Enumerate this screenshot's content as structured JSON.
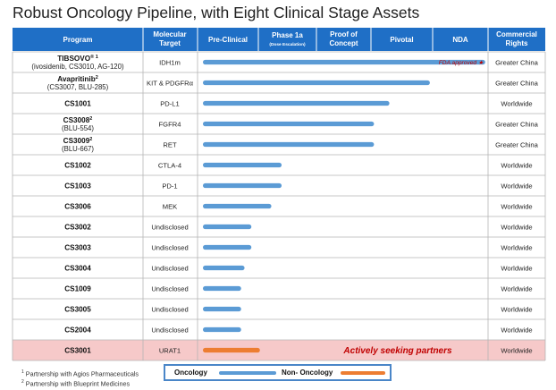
{
  "title": "Robust Oncology Pipeline, with Eight Clinical Stage Assets",
  "colors": {
    "header_bg": "#1f6fc6",
    "header_text": "#ffffff",
    "oncology_bar": "#5b9bd5",
    "non_oncology_bar": "#ed7d31",
    "highlight_row": "#f6c9c9",
    "grid": "#b5b5b5",
    "fda_text": "#c00000",
    "partners_text": "#c00000"
  },
  "chart_data": {
    "type": "table",
    "columns": {
      "program": "Program",
      "target": [
        "Molecular",
        "Target"
      ],
      "stages": [
        {
          "label": "Pre-Clinical"
        },
        {
          "label": "Phase 1a",
          "sub": "(Dose Escalation)"
        },
        {
          "label": "Proof of",
          "label2": "Concept"
        },
        {
          "label": "Pivotal"
        },
        {
          "label": "NDA"
        }
      ],
      "rights": [
        "Commercial",
        "Rights"
      ]
    },
    "stage_range": [
      0,
      5
    ],
    "rows": [
      {
        "name": "TIBSOVO",
        "sup": "® 1",
        "sub": "(ivosidenib, CS3010, AG-120)",
        "target": "IDH1m",
        "progress": 4.95,
        "category": "oncology",
        "rights": "Greater China",
        "note": "FDA approved ★"
      },
      {
        "name": "Avapritinib",
        "sup": "2",
        "sub": "(CS3007, BLU-285)",
        "target": "KIT & PDGFRα",
        "progress": 3.98,
        "category": "oncology",
        "rights": "Greater China"
      },
      {
        "name": "CS1001",
        "target": "PD-L1",
        "progress": 3.27,
        "category": "oncology",
        "rights": "Worldwide"
      },
      {
        "name": "CS3008",
        "sup": "2",
        "sub": "(BLU-554)",
        "target": "FGFR4",
        "progress": 3.0,
        "category": "oncology",
        "rights": "Greater China"
      },
      {
        "name": "CS3009",
        "sup": "2",
        "sub": "(BLU-667)",
        "target": "RET",
        "progress": 3.0,
        "category": "oncology",
        "rights": "Greater China"
      },
      {
        "name": "CS1002",
        "target": "CTLA-4",
        "progress": 1.38,
        "category": "oncology",
        "rights": "Worldwide"
      },
      {
        "name": "CS1003",
        "target": "PD-1",
        "progress": 1.38,
        "category": "oncology",
        "rights": "Worldwide"
      },
      {
        "name": "CS3006",
        "target": "MEK",
        "progress": 1.2,
        "category": "oncology",
        "rights": "Worldwide"
      },
      {
        "name": "CS3002",
        "target": "Undisclosed",
        "progress": 0.85,
        "category": "oncology",
        "rights": "Worldwide"
      },
      {
        "name": "CS3003",
        "target": "Undisclosed",
        "progress": 0.85,
        "category": "oncology",
        "rights": "Worldwide"
      },
      {
        "name": "CS3004",
        "target": "Undisclosed",
        "progress": 0.73,
        "category": "oncology",
        "rights": "Worldwide"
      },
      {
        "name": "CS1009",
        "target": "Undisclosed",
        "progress": 0.67,
        "category": "oncology",
        "rights": "Worldwide"
      },
      {
        "name": "CS3005",
        "target": "Undisclosed",
        "progress": 0.67,
        "category": "oncology",
        "rights": "Worldwide"
      },
      {
        "name": "CS2004",
        "target": "Undisclosed",
        "progress": 0.67,
        "category": "oncology",
        "rights": "Worldwide"
      },
      {
        "name": "CS3001",
        "target": "URAT1",
        "progress": 1.0,
        "category": "non_oncology",
        "rights": "Worldwide",
        "note": "Actively seeking partners",
        "highlight": true
      }
    ],
    "legend": [
      {
        "label": "Oncology",
        "category": "oncology"
      },
      {
        "label": "Non- Oncology",
        "category": "non_oncology"
      }
    ]
  },
  "footnotes": {
    "f1_num": "1",
    "f1_text": "Partnership with Agios Pharmaceuticals",
    "f2_num": "2",
    "f2_text": "Partnership with Blueprint Medicines"
  }
}
